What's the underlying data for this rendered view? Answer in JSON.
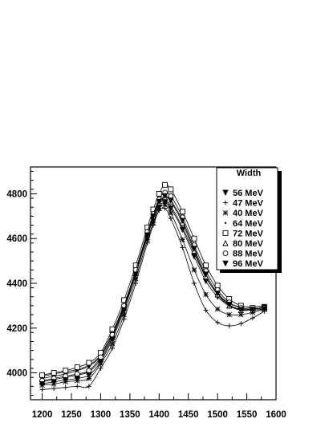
{
  "chart_data": {
    "type": "line",
    "title": "",
    "xlabel": "",
    "ylabel": "",
    "xlim": [
      1180,
      1600
    ],
    "ylim": [
      3880,
      4920
    ],
    "x_ticks": [
      1200,
      1250,
      1300,
      1350,
      1400,
      1450,
      1500,
      1550,
      1600
    ],
    "y_ticks": [
      4000,
      4200,
      4400,
      4600,
      4800
    ],
    "grid": false,
    "legend": {
      "title": "Width",
      "placement": "top-right"
    },
    "x": [
      1200,
      1220,
      1240,
      1260,
      1280,
      1300,
      1320,
      1340,
      1360,
      1380,
      1390,
      1400,
      1410,
      1420,
      1440,
      1460,
      1480,
      1500,
      1520,
      1540,
      1560,
      1580
    ],
    "series": [
      {
        "name": "56 MeV",
        "marker": "triangle-down-filled",
        "values": [
          3975,
          3985,
          3995,
          4010,
          4030,
          4075,
          4170,
          4295,
          4445,
          4610,
          4685,
          4745,
          4760,
          4735,
          4640,
          4520,
          4410,
          4340,
          4300,
          4285,
          4285,
          4295
        ]
      },
      {
        "name": "47 MeV",
        "marker": "plus",
        "values": [
          3925,
          3930,
          3935,
          3940,
          3940,
          4020,
          4110,
          4240,
          4400,
          4580,
          4660,
          4725,
          4735,
          4690,
          4560,
          4400,
          4280,
          4225,
          4210,
          4220,
          4245,
          4275
        ]
      },
      {
        "name": "40 MeV",
        "marker": "star",
        "values": [
          3945,
          3950,
          3960,
          3965,
          3975,
          4040,
          4130,
          4260,
          4420,
          4595,
          4670,
          4735,
          4750,
          4715,
          4595,
          4460,
          4350,
          4285,
          4260,
          4260,
          4270,
          4285
        ]
      },
      {
        "name": "64 MeV",
        "marker": "dot",
        "values": [
          3985,
          3995,
          4005,
          4015,
          4035,
          4080,
          4180,
          4305,
          4455,
          4620,
          4695,
          4755,
          4770,
          4745,
          4650,
          4535,
          4425,
          4355,
          4310,
          4295,
          4295,
          4300
        ]
      },
      {
        "name": "72 MeV",
        "marker": "square-open",
        "values": [
          3990,
          4000,
          4010,
          4025,
          4045,
          4090,
          4195,
          4325,
          4480,
          4650,
          4730,
          4800,
          4840,
          4820,
          4720,
          4600,
          4480,
          4390,
          4330,
          4300,
          4290,
          4290
        ]
      },
      {
        "name": "80 MeV",
        "marker": "triangle-up-open",
        "values": [
          3960,
          3970,
          3980,
          3990,
          4005,
          4060,
          4160,
          4290,
          4445,
          4620,
          4700,
          4760,
          4785,
          4765,
          4670,
          4545,
          4430,
          4350,
          4300,
          4280,
          4280,
          4285
        ]
      },
      {
        "name": "88 MeV",
        "marker": "circle-open",
        "values": [
          3965,
          3975,
          3985,
          3995,
          4010,
          4070,
          4170,
          4300,
          4460,
          4630,
          4710,
          4775,
          4805,
          4790,
          4695,
          4570,
          4455,
          4370,
          4315,
          4290,
          4285,
          4290
        ]
      },
      {
        "name": "96 MeV",
        "marker": "triangle-down-filled",
        "values": [
          3950,
          3960,
          3968,
          3975,
          3990,
          4050,
          4150,
          4280,
          4440,
          4615,
          4700,
          4765,
          4790,
          4770,
          4680,
          4555,
          4440,
          4355,
          4305,
          4282,
          4280,
          4285
        ]
      }
    ]
  }
}
